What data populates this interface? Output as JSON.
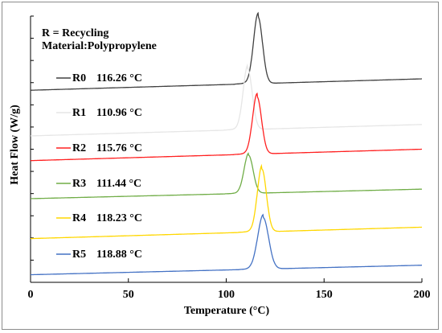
{
  "chart_data": {
    "type": "line",
    "annotations": [
      "R = Recycling",
      "Material:Polypropylene"
    ],
    "xlabel": "Temperature (°C)",
    "ylabel": "Heat Flow (W/g)",
    "xlim": [
      0,
      200
    ],
    "ylim": [
      0,
      7
    ],
    "x_ticks": [
      "0",
      "50",
      "100",
      "150",
      "200"
    ],
    "y_ticks_visible": false,
    "grid": false,
    "legend_position": "left",
    "series": [
      {
        "name": "R0",
        "peak_label": "116.26 °C",
        "color": "#404040",
        "baseline": [
          5.05,
          5.35
        ],
        "peak_x": 116.26,
        "peak_height": 1.75,
        "width": 2.3
      },
      {
        "name": "R1",
        "peak_label": "110.96 °C",
        "color": "#e6e6e6",
        "baseline": [
          3.85,
          4.15
        ],
        "peak_x": 110.96,
        "peak_height": 1.6,
        "width": 2.3
      },
      {
        "name": "R2",
        "peak_label": "115.76 °C",
        "color": "#ff2020",
        "baseline": [
          3.2,
          3.5
        ],
        "peak_x": 115.76,
        "peak_height": 1.5,
        "width": 2.3
      },
      {
        "name": "R3",
        "peak_label": "111.44 °C",
        "color": "#70ad47",
        "baseline": [
          2.2,
          2.45
        ],
        "peak_x": 111.44,
        "peak_height": 1.0,
        "width": 2.3
      },
      {
        "name": "R4",
        "peak_label": "118.23 °C",
        "color": "#ffd700",
        "baseline": [
          1.15,
          1.45
        ],
        "peak_x": 118.23,
        "peak_height": 1.65,
        "width": 2.3
      },
      {
        "name": "R5",
        "peak_label": "118.88 °C",
        "color": "#4472c4",
        "baseline": [
          0.2,
          0.45
        ],
        "peak_x": 118.88,
        "peak_height": 1.35,
        "width": 2.8
      }
    ]
  }
}
